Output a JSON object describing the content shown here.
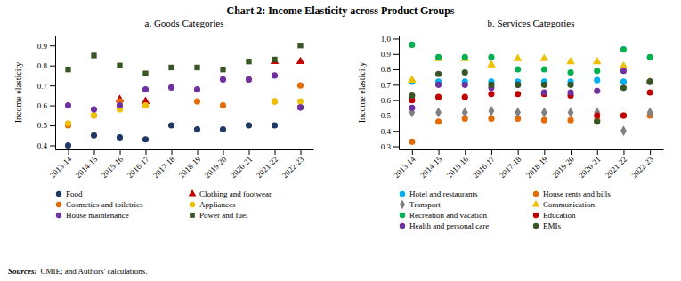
{
  "title": "Chart 2: Income Elasticity across Product Groups",
  "annotations": [
    "Sources:",
    "CMIE; and Authors' calculations."
  ],
  "chart_data": [
    {
      "type": "scatter",
      "title": "a. Goods Categories",
      "ylabel": "Income elasticity",
      "categories": [
        "2013-14",
        "2014-15",
        "2015-16",
        "2016-17",
        "2017-18",
        "2018-19",
        "2019-20",
        "2020-21",
        "2021-22",
        "2022-23"
      ],
      "series": [
        {
          "name": "Food",
          "color": "#1f3864",
          "marker": "circle",
          "values": [
            0.4,
            0.45,
            0.44,
            0.43,
            0.5,
            0.48,
            0.48,
            0.5,
            0.5,
            0.59
          ]
        },
        {
          "name": "Clothing and footwear",
          "color": "#c00000",
          "marker": "triangle",
          "values": [
            null,
            null,
            0.63,
            0.62,
            null,
            null,
            null,
            null,
            0.82,
            0.82
          ]
        },
        {
          "name": "Cosmetics and toiletries",
          "color": "#e36c09",
          "marker": "circle",
          "values": [
            0.5,
            0.55,
            0.62,
            0.6,
            null,
            0.62,
            0.6,
            null,
            0.62,
            0.7
          ]
        },
        {
          "name": "Appliances",
          "color": "#f0c000",
          "marker": "circle",
          "values": [
            0.51,
            0.55,
            0.58,
            0.6,
            null,
            null,
            null,
            0.73,
            0.62,
            0.62
          ]
        },
        {
          "name": "House maintenance",
          "color": "#7030a0",
          "marker": "circle",
          "values": [
            0.6,
            0.58,
            0.6,
            0.68,
            0.69,
            0.68,
            0.73,
            0.73,
            0.75,
            0.59
          ]
        },
        {
          "name": "Power and fuel",
          "color": "#375623",
          "marker": "square",
          "values": [
            0.78,
            0.85,
            0.8,
            0.76,
            0.79,
            0.79,
            0.78,
            0.82,
            0.83,
            0.9
          ]
        }
      ],
      "ylim": [
        0.38,
        0.95
      ],
      "yticks": [
        0.4,
        0.5,
        0.6,
        0.7,
        0.8,
        0.9
      ]
    },
    {
      "type": "scatter",
      "title": "b. Services Categories",
      "ylabel": "Income elasticity",
      "categories": [
        "2013-14",
        "2014-15",
        "2015-16",
        "2016-17",
        "2017-18",
        "2018-19",
        "2019-20",
        "2020-21",
        "2021-22",
        "2022-23"
      ],
      "series": [
        {
          "name": "Hotel and restaurants",
          "color": "#00b0f0",
          "marker": "circle",
          "values": [
            0.72,
            0.72,
            0.72,
            0.72,
            0.72,
            0.72,
            0.72,
            0.73,
            0.72,
            0.72
          ]
        },
        {
          "name": "House rents and bills",
          "color": "#e36c09",
          "marker": "circle",
          "values": [
            0.33,
            0.46,
            0.48,
            0.48,
            0.48,
            0.47,
            0.47,
            0.47,
            0.5,
            0.5
          ]
        },
        {
          "name": "Transport",
          "color": "#808080",
          "marker": "diamond",
          "values": [
            0.52,
            0.52,
            0.52,
            0.53,
            0.52,
            0.52,
            0.52,
            0.52,
            0.4,
            0.52
          ]
        },
        {
          "name": "Communication",
          "color": "#f0c000",
          "marker": "triangle",
          "values": [
            0.73,
            0.87,
            0.87,
            0.83,
            0.87,
            0.87,
            0.85,
            0.85,
            0.82,
            0.72
          ]
        },
        {
          "name": "Recreation and vacation",
          "color": "#00b050",
          "marker": "circle",
          "values": [
            0.96,
            0.88,
            0.88,
            0.88,
            0.8,
            0.8,
            0.78,
            0.79,
            0.93,
            0.88
          ]
        },
        {
          "name": "Education",
          "color": "#c00000",
          "marker": "circle",
          "values": [
            0.6,
            0.62,
            0.62,
            0.64,
            0.64,
            0.64,
            0.63,
            0.5,
            0.5,
            0.65
          ]
        },
        {
          "name": "Health and personal care",
          "color": "#7030a0",
          "marker": "circle",
          "values": [
            0.55,
            0.7,
            0.7,
            0.68,
            0.7,
            0.65,
            0.65,
            0.66,
            0.79,
            0.72
          ]
        },
        {
          "name": "EMIs",
          "color": "#375623",
          "marker": "circle",
          "values": [
            0.63,
            0.77,
            0.78,
            0.7,
            0.7,
            0.7,
            0.7,
            0.46,
            0.68,
            0.72
          ]
        }
      ],
      "ylim": [
        0.28,
        1.02
      ],
      "yticks": [
        0.3,
        0.4,
        0.5,
        0.6,
        0.7,
        0.8,
        0.9,
        {
          "value": 1.0,
          "label": "1.0"
        }
      ]
    }
  ]
}
